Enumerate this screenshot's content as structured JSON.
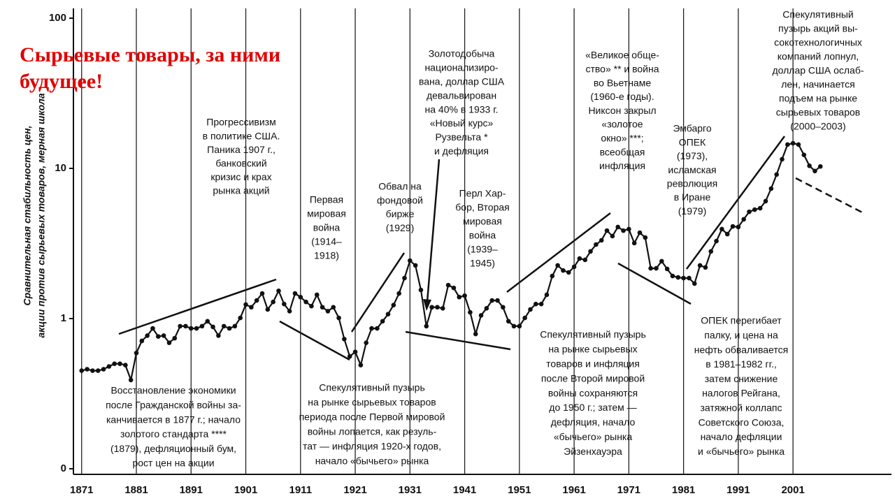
{
  "chart_data": {
    "type": "line",
    "title": [
      "Сырьевые товары, за ними",
      "будущее!"
    ],
    "y_label": [
      "Сравнительная стабильность цен,",
      "акции против сырьевых товаров, мерная школа"
    ],
    "log_scale": true,
    "grid": true,
    "color": "#111111",
    "xlim": [
      1869.5,
      2019
    ],
    "xticks": [
      1871,
      1881,
      1891,
      1901,
      1911,
      1921,
      1931,
      1941,
      1951,
      1961,
      1971,
      1981,
      1991,
      2001
    ],
    "ylim": [
      0.1,
      100
    ],
    "yticks": [
      {
        "value": 0.1,
        "label": "0"
      },
      1,
      10,
      100
    ],
    "x": [
      1871,
      1872,
      1873,
      1874,
      1875,
      1876,
      1877,
      1878,
      1879,
      1880,
      1881,
      1882,
      1883,
      1884,
      1885,
      1886,
      1887,
      1888,
      1889,
      1890,
      1891,
      1892,
      1893,
      1894,
      1895,
      1896,
      1897,
      1898,
      1899,
      1900,
      1901,
      1902,
      1903,
      1904,
      1905,
      1906,
      1907,
      1908,
      1909,
      1910,
      1911,
      1912,
      1913,
      1914,
      1915,
      1916,
      1917,
      1918,
      1919,
      1920,
      1921,
      1922,
      1923,
      1924,
      1925,
      1926,
      1927,
      1928,
      1929,
      1930,
      1931,
      1932,
      1933,
      1934,
      1935,
      1936,
      1937,
      1938,
      1939,
      1940,
      1941,
      1942,
      1943,
      1944,
      1945,
      1946,
      1947,
      1948,
      1949,
      1950,
      1951,
      1952,
      1953,
      1954,
      1955,
      1956,
      1957,
      1958,
      1959,
      1960,
      1961,
      1962,
      1963,
      1964,
      1965,
      1966,
      1967,
      1968,
      1969,
      1970,
      1971,
      1972,
      1973,
      1974,
      1975,
      1976,
      1977,
      1978,
      1979,
      1980,
      1981,
      1982,
      1983,
      1984,
      1985,
      1986,
      1987,
      1988,
      1989,
      1990,
      1991,
      1992,
      1993,
      1994,
      1995,
      1996,
      1997,
      1998,
      1999,
      2000,
      2001,
      2002,
      2003,
      2004,
      2005,
      2006
    ],
    "values": [
      0.45,
      0.46,
      0.45,
      0.45,
      0.46,
      0.48,
      0.5,
      0.5,
      0.49,
      0.39,
      0.59,
      0.71,
      0.77,
      0.86,
      0.76,
      0.77,
      0.69,
      0.74,
      0.89,
      0.89,
      0.86,
      0.86,
      0.89,
      0.96,
      0.88,
      0.77,
      0.89,
      0.86,
      0.89,
      1.01,
      1.24,
      1.19,
      1.32,
      1.47,
      1.15,
      1.29,
      1.53,
      1.25,
      1.12,
      1.47,
      1.39,
      1.29,
      1.21,
      1.44,
      1.19,
      1.12,
      1.19,
      1.01,
      0.73,
      0.56,
      0.6,
      0.49,
      0.69,
      0.86,
      0.86,
      0.96,
      1.07,
      1.23,
      1.47,
      1.86,
      2.43,
      2.26,
      1.55,
      0.89,
      1.19,
      1.19,
      1.17,
      1.67,
      1.6,
      1.39,
      1.42,
      1.1,
      0.79,
      1.05,
      1.17,
      1.32,
      1.32,
      1.19,
      0.96,
      0.89,
      0.89,
      1.01,
      1.15,
      1.25,
      1.25,
      1.44,
      1.92,
      2.26,
      2.09,
      2.03,
      2.21,
      2.51,
      2.46,
      2.8,
      3.11,
      3.32,
      3.85,
      3.54,
      4.07,
      3.85,
      3.94,
      3.18,
      3.73,
      3.46,
      2.16,
      2.16,
      2.41,
      2.14,
      1.92,
      1.88,
      1.86,
      1.86,
      1.71,
      2.26,
      2.19,
      2.8,
      3.28,
      3.94,
      3.65,
      4.11,
      4.07,
      4.58,
      5.14,
      5.31,
      5.43,
      6.05,
      7.33,
      9.1,
      11.5,
      14.4,
      14.7,
      14.4,
      12.3,
      10.4,
      9.6,
      10.3
    ],
    "annotations": [
      [
        "Прогрессивизм",
        "в политике США.",
        "Паника 1907 г.,",
        "банковский",
        "кризис и крах",
        "рынка акций"
      ],
      [
        "Первая",
        "мировая",
        "война",
        "(1914–",
        "1918)"
      ],
      [
        "Обвал на",
        "фондовой",
        "бирже",
        "(1929)"
      ],
      [
        "Золотодобыча",
        "национализиро-",
        "вана, доллар США",
        "девальвирован",
        "на 40% в 1933 г.",
        "«Новый курс»",
        "Рузвельта *",
        "и дефляция"
      ],
      [
        "Перл Хар-",
        "бор, Вторая",
        "мировая",
        "война",
        "(1939–",
        "1945)"
      ],
      [
        "«Великое обще-",
        "ство» ** и война",
        "во Вьетнаме",
        "(1960-е годы).",
        "Никсон закрыл",
        "«золотое",
        "окно» ***;",
        "всеобщая",
        "инфляция"
      ],
      [
        "Эмбарго",
        "ОПЕК",
        "(1973),",
        "исламская",
        "революция",
        "в Иране",
        "(1979)"
      ],
      [
        "Спекулятивный",
        "пузырь акций вы-",
        "сокотехнологичных",
        "компаний лопнул,",
        "доллар США ослаб-",
        "лен, начинается",
        "подъем на рынке",
        "сырьевых товаров",
        "(2000–2003)"
      ],
      [
        "Восстановление экономики",
        "после Гражданской войны за-",
        "канчивается в 1877 г.; начало",
        "золотого стандарта ****",
        "(1879), дефляционный бум,",
        "рост цен на акции"
      ],
      [
        "Спекулятивный пузырь",
        "на рынке сырьевых товаров",
        "периода после Первой мировой",
        "войны лопается, как резуль-",
        "тат — инфляция 1920-х годов,",
        "начало «бычьего» рынка"
      ],
      [
        "Спекулятивный пузырь",
        "на рынке сырьевых",
        "товаров и инфляция",
        "после Второй мировой",
        "войны сохраняются",
        "до 1950 г.; затем —",
        "дефляция, начало",
        "«бычьего» рынка",
        "Эйзенхауэра"
      ],
      [
        "ОПЕК перегибает",
        "палку, и цена на",
        "нефть обваливается",
        "в 1981–1982 гг.,",
        "затем снижение",
        "налогов Рейгана,",
        "затяжной коллапс",
        "Советского Союза,",
        "начало дефляции",
        "и «бычьего» рынка"
      ]
    ]
  }
}
